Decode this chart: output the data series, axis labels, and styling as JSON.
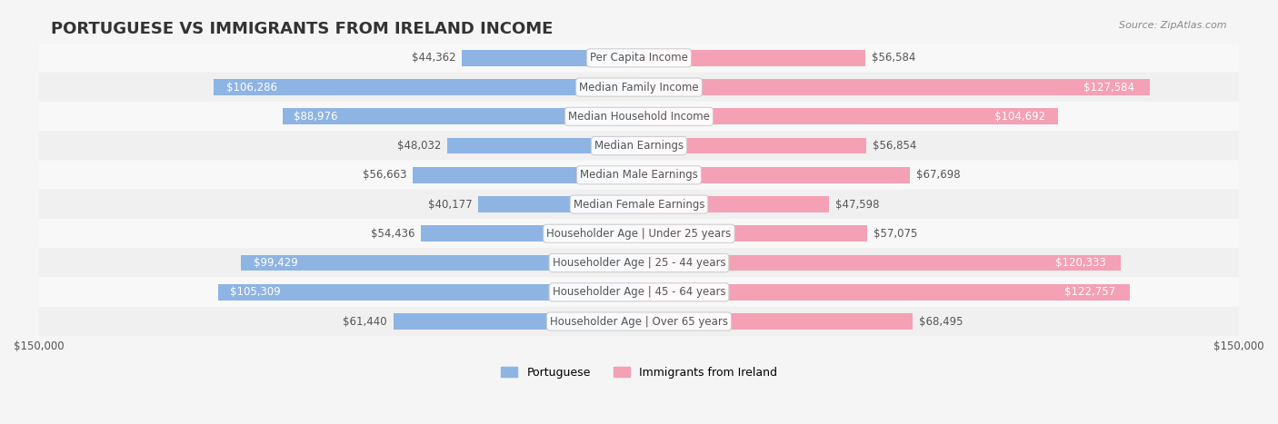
{
  "title": "PORTUGUESE VS IMMIGRANTS FROM IRELAND INCOME",
  "source": "Source: ZipAtlas.com",
  "categories": [
    "Per Capita Income",
    "Median Family Income",
    "Median Household Income",
    "Median Earnings",
    "Median Male Earnings",
    "Median Female Earnings",
    "Householder Age | Under 25 years",
    "Householder Age | 25 - 44 years",
    "Householder Age | 45 - 64 years",
    "Householder Age | Over 65 years"
  ],
  "portuguese_values": [
    44362,
    106286,
    88976,
    48032,
    56663,
    40177,
    54436,
    99429,
    105309,
    61440
  ],
  "ireland_values": [
    56584,
    127584,
    104692,
    56854,
    67698,
    47598,
    57075,
    120333,
    122757,
    68495
  ],
  "portuguese_labels": [
    "$44,362",
    "$106,286",
    "$88,976",
    "$48,032",
    "$56,663",
    "$40,177",
    "$54,436",
    "$99,429",
    "$105,309",
    "$61,440"
  ],
  "ireland_labels": [
    "$56,584",
    "$127,584",
    "$104,692",
    "$56,854",
    "$67,698",
    "$47,598",
    "$57,075",
    "$120,333",
    "$122,757",
    "$68,495"
  ],
  "portuguese_color": "#8eb4e3",
  "ireland_color": "#f4a0b5",
  "portuguese_label_color_threshold": 80000,
  "ireland_label_color_threshold": 80000,
  "max_value": 150000,
  "bar_height": 0.55,
  "background_color": "#f5f5f5",
  "row_bg_color": "#ffffff",
  "row_alt_bg_color": "#f0f0f0",
  "title_fontsize": 13,
  "label_fontsize": 8.5,
  "category_fontsize": 8.5,
  "legend_fontsize": 9,
  "source_fontsize": 8
}
